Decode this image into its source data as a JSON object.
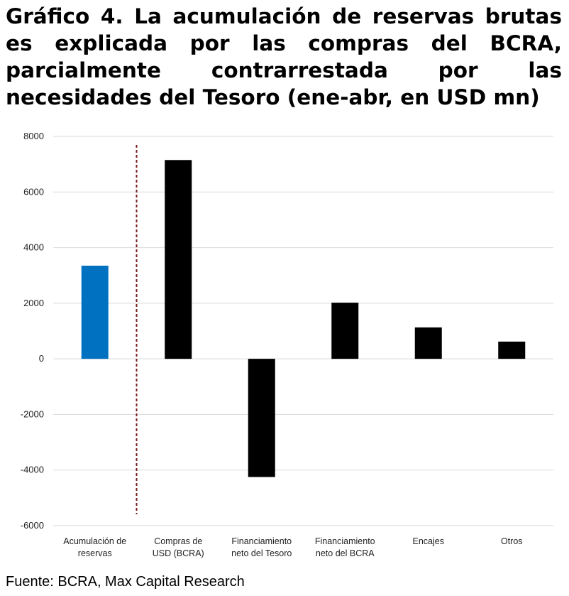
{
  "title": "Gráfico 4.  La acumulación de reservas brutas es explicada por las compras del BCRA, parcialmente contrarrestada por las necesidades del Tesoro (ene-abr, en USD mn)",
  "source": "Fuente: BCRA, Max Capital Research",
  "colors": {
    "highlight": "#0070C0",
    "bars": "#000000",
    "divider": "#7B1E1E",
    "grid": "#D9D9D9"
  },
  "chart_data": {
    "type": "bar",
    "categories": [
      [
        "Acumulación de",
        "reservas"
      ],
      [
        "Compras de",
        "USD (BCRA)"
      ],
      [
        "Financiamiento",
        "neto del Tesoro"
      ],
      [
        "Financiamiento",
        "neto del BCRA"
      ],
      [
        "Encajes"
      ],
      [
        "Otros"
      ]
    ],
    "values": [
      3350,
      7150,
      -4250,
      2020,
      1130,
      620
    ],
    "ylim": [
      -6000,
      8000
    ],
    "yticks": [
      8000,
      6000,
      4000,
      2000,
      0,
      -2000,
      -4000,
      -6000
    ],
    "grid": true,
    "divider_after_category": 0
  }
}
